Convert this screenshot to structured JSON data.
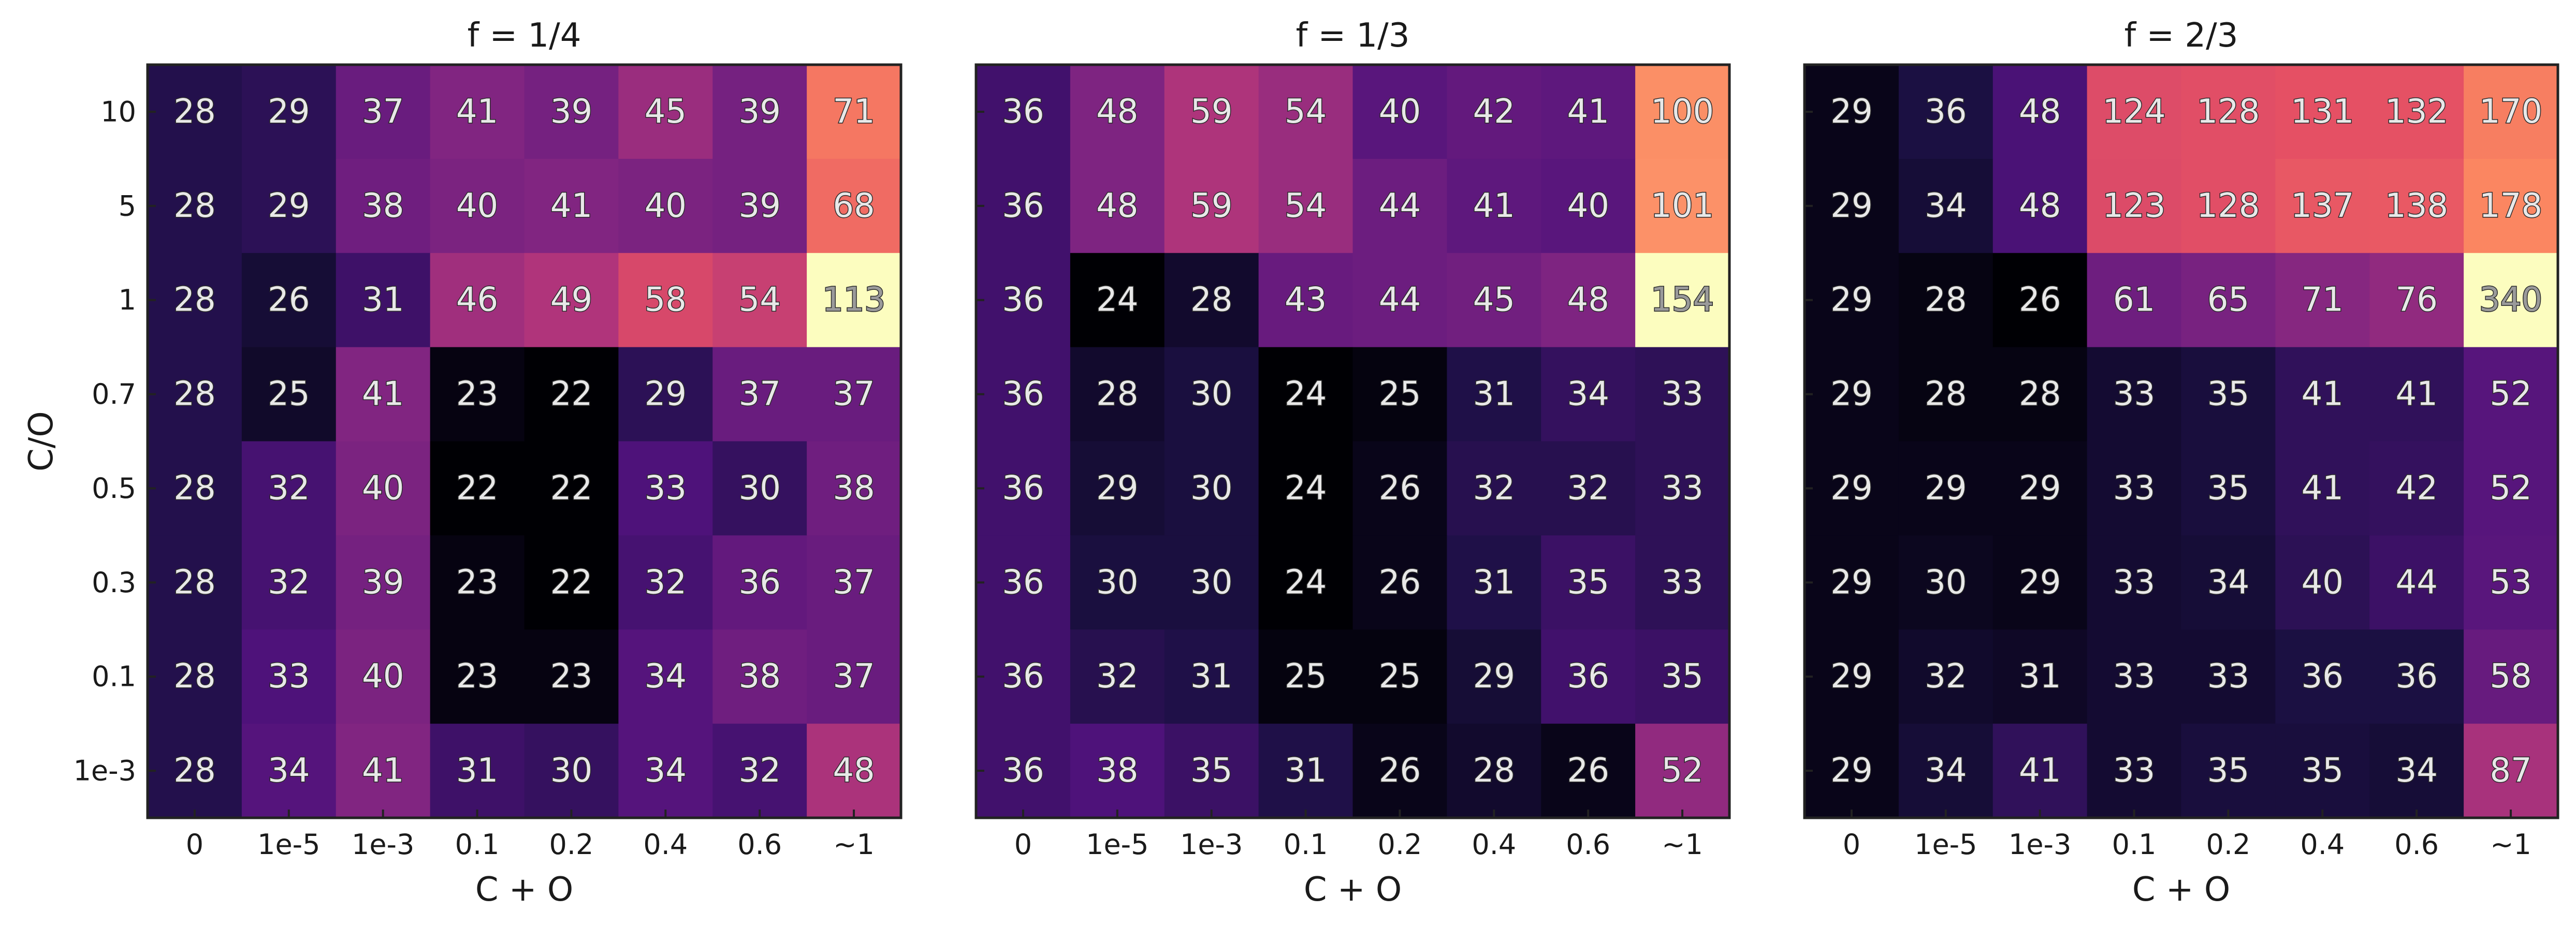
{
  "chart_data": [
    {
      "type": "heatmap",
      "title": "f = 1/4",
      "xlabel": "C + O",
      "ylabel": "C/O",
      "x_categories": [
        "0",
        "1e-5",
        "1e-3",
        "0.1",
        "0.2",
        "0.4",
        "0.6",
        "~1"
      ],
      "y_categories": [
        "10",
        "5",
        "1",
        "0.7",
        "0.5",
        "0.3",
        "0.1",
        "1e-3"
      ],
      "show_y_tick_labels": true,
      "colormap": "magma",
      "values": [
        [
          28,
          29,
          37,
          41,
          39,
          45,
          39,
          71
        ],
        [
          28,
          29,
          38,
          40,
          41,
          40,
          39,
          68
        ],
        [
          28,
          26,
          31,
          46,
          49,
          58,
          54,
          113
        ],
        [
          28,
          25,
          41,
          23,
          22,
          29,
          37,
          37
        ],
        [
          28,
          32,
          40,
          22,
          22,
          33,
          30,
          38
        ],
        [
          28,
          32,
          39,
          23,
          22,
          32,
          36,
          37
        ],
        [
          28,
          33,
          40,
          23,
          23,
          34,
          38,
          37
        ],
        [
          28,
          34,
          41,
          31,
          30,
          34,
          32,
          48
        ]
      ]
    },
    {
      "type": "heatmap",
      "title": "f = 1/3",
      "xlabel": "C + O",
      "ylabel": "",
      "x_categories": [
        "0",
        "1e-5",
        "1e-3",
        "0.1",
        "0.2",
        "0.4",
        "0.6",
        "~1"
      ],
      "y_categories": [
        "10",
        "5",
        "1",
        "0.7",
        "0.5",
        "0.3",
        "0.1",
        "1e-3"
      ],
      "show_y_tick_labels": false,
      "colormap": "magma",
      "values": [
        [
          36,
          48,
          59,
          54,
          40,
          42,
          41,
          100
        ],
        [
          36,
          48,
          59,
          54,
          44,
          41,
          40,
          101
        ],
        [
          36,
          24,
          28,
          43,
          44,
          45,
          48,
          154
        ],
        [
          36,
          28,
          30,
          24,
          25,
          31,
          34,
          33
        ],
        [
          36,
          29,
          30,
          24,
          26,
          32,
          32,
          33
        ],
        [
          36,
          30,
          30,
          24,
          26,
          31,
          35,
          33
        ],
        [
          36,
          32,
          31,
          25,
          25,
          29,
          36,
          35
        ],
        [
          36,
          38,
          35,
          31,
          26,
          28,
          26,
          52
        ]
      ]
    },
    {
      "type": "heatmap",
      "title": "f = 2/3",
      "xlabel": "C + O",
      "ylabel": "",
      "x_categories": [
        "0",
        "1e-5",
        "1e-3",
        "0.1",
        "0.2",
        "0.4",
        "0.6",
        "~1"
      ],
      "y_categories": [
        "10",
        "5",
        "1",
        "0.7",
        "0.5",
        "0.3",
        "0.1",
        "1e-3"
      ],
      "show_y_tick_labels": false,
      "colormap": "magma",
      "values": [
        [
          29,
          36,
          48,
          124,
          128,
          131,
          132,
          170
        ],
        [
          29,
          34,
          48,
          123,
          128,
          137,
          138,
          178
        ],
        [
          29,
          28,
          26,
          61,
          65,
          71,
          76,
          340
        ],
        [
          29,
          28,
          28,
          33,
          35,
          41,
          41,
          52
        ],
        [
          29,
          29,
          29,
          33,
          35,
          41,
          42,
          52
        ],
        [
          29,
          30,
          29,
          33,
          34,
          40,
          44,
          53
        ],
        [
          29,
          32,
          31,
          33,
          33,
          36,
          36,
          58
        ],
        [
          29,
          34,
          41,
          33,
          35,
          35,
          34,
          87
        ]
      ]
    }
  ]
}
